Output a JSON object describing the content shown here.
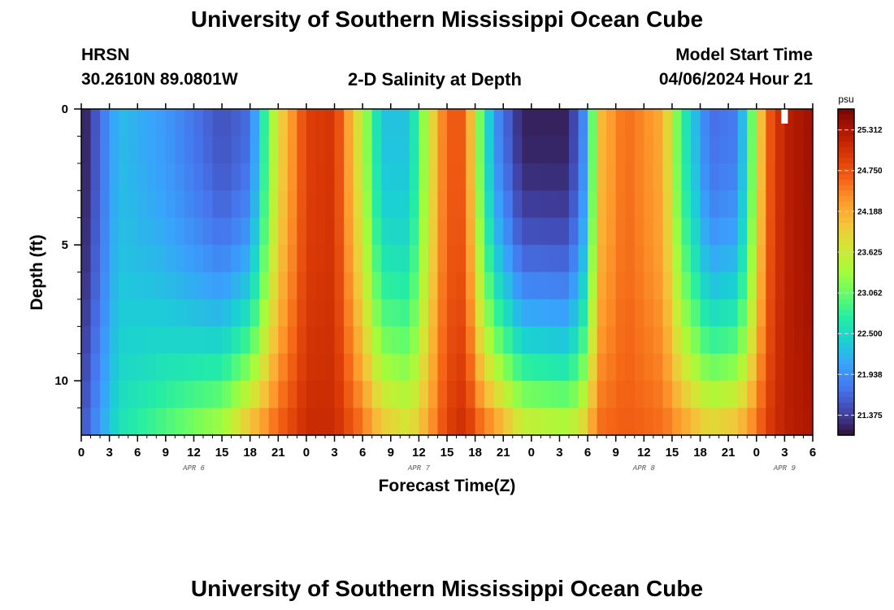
{
  "header": {
    "title": "University of Southern Mississippi Ocean Cube",
    "station": "HRSN",
    "coords": "30.2610N  89.0801W",
    "subtitle": "2-D Salinity at Depth",
    "model_start_label": "Model Start Time",
    "model_start_value": "04/06/2024 Hour 21",
    "footer_title": "University of Southern Mississippi Ocean Cube"
  },
  "colors": {
    "colormap": [
      "#30123b",
      "#4145ab",
      "#4675ed",
      "#39a2fc",
      "#1bcfd4",
      "#24eca6",
      "#61fc6c",
      "#a4fc3b",
      "#d1e834",
      "#f3c63a",
      "#fe9b2d",
      "#f36315",
      "#d93806",
      "#b11901",
      "#7a0402"
    ],
    "marker": "#ffffff"
  },
  "chart_data": {
    "type": "heatmap",
    "title": "2-D Salinity at Depth",
    "xlabel": "Forecast Time(Z)",
    "ylabel": "Depth (ft)",
    "x_unit": "hours since APR 6 00Z",
    "x_range": [
      0,
      78
    ],
    "x_ticks": [
      0,
      3,
      6,
      9,
      12,
      15,
      18,
      21,
      24,
      27,
      30,
      33,
      36,
      39,
      42,
      45,
      48,
      51,
      54,
      57,
      60,
      63,
      66,
      69,
      72,
      75,
      78
    ],
    "x_tick_labels": [
      "0",
      "3",
      "6",
      "9",
      "12",
      "15",
      "18",
      "21",
      "0",
      "3",
      "6",
      "9",
      "12",
      "15",
      "18",
      "21",
      "0",
      "3",
      "6",
      "9",
      "12",
      "15",
      "18",
      "21",
      "0",
      "3",
      "6"
    ],
    "day_labels": [
      {
        "hour": 12,
        "label": "APR 6"
      },
      {
        "hour": 36,
        "label": "APR 7"
      },
      {
        "hour": 60,
        "label": "APR 8"
      },
      {
        "hour": 75,
        "label": "APR 9"
      }
    ],
    "y_range": [
      0,
      12
    ],
    "y_ticks": [
      0,
      5,
      10
    ],
    "y_tick_labels": [
      "0",
      "5",
      "10"
    ],
    "colorbar": {
      "unit": "psu",
      "range": [
        21.1,
        25.6
      ],
      "ticks": [
        21.375,
        21.938,
        22.5,
        23.062,
        23.625,
        24.188,
        24.75,
        25.312
      ],
      "tick_labels": [
        "21.375",
        "21.938",
        "22.500",
        "23.062",
        "23.625",
        "24.188",
        "24.750",
        "25.312"
      ]
    },
    "model_start_hour": 75,
    "field": {
      "x_step_hours": 1,
      "depth_levels_ft": [
        0,
        1,
        2,
        3,
        4,
        5,
        6,
        7,
        8,
        9,
        10,
        11
      ],
      "keyframes": [
        {
          "hour": 0,
          "surface": 21.1,
          "bottom": 21.5
        },
        {
          "hour": 4,
          "surface": 22.25,
          "bottom": 22.6
        },
        {
          "hour": 9,
          "surface": 22.0,
          "bottom": 23.0
        },
        {
          "hour": 15,
          "surface": 21.5,
          "bottom": 23.5
        },
        {
          "hour": 18,
          "surface": 21.7,
          "bottom": 24.2
        },
        {
          "hour": 21,
          "surface": 23.8,
          "bottom": 24.7
        },
        {
          "hour": 24,
          "surface": 24.9,
          "bottom": 25.1
        },
        {
          "hour": 27,
          "surface": 25.0,
          "bottom": 25.1
        },
        {
          "hour": 30,
          "surface": 23.5,
          "bottom": 24.6
        },
        {
          "hour": 32,
          "surface": 22.3,
          "bottom": 24.1
        },
        {
          "hour": 35,
          "surface": 22.3,
          "bottom": 23.8
        },
        {
          "hour": 37,
          "surface": 23.6,
          "bottom": 24.3
        },
        {
          "hour": 39,
          "surface": 24.7,
          "bottom": 24.9
        },
        {
          "hour": 41,
          "surface": 24.7,
          "bottom": 25.1
        },
        {
          "hour": 42,
          "surface": 23.5,
          "bottom": 24.8
        },
        {
          "hour": 44,
          "surface": 22.0,
          "bottom": 24.5
        },
        {
          "hour": 47,
          "surface": 21.2,
          "bottom": 23.8
        },
        {
          "hour": 52,
          "surface": 21.2,
          "bottom": 23.6
        },
        {
          "hour": 54,
          "surface": 22.1,
          "bottom": 24.1
        },
        {
          "hour": 55,
          "surface": 24.0,
          "bottom": 24.6
        },
        {
          "hour": 58,
          "surface": 24.6,
          "bottom": 24.7
        },
        {
          "hour": 62,
          "surface": 24.2,
          "bottom": 24.6
        },
        {
          "hour": 64,
          "surface": 22.8,
          "bottom": 24.4
        },
        {
          "hour": 67,
          "surface": 21.7,
          "bottom": 24.0
        },
        {
          "hour": 70,
          "surface": 21.8,
          "bottom": 24.2
        },
        {
          "hour": 72,
          "surface": 23.5,
          "bottom": 24.6
        },
        {
          "hour": 73,
          "surface": 24.6,
          "bottom": 24.9
        },
        {
          "hour": 75,
          "surface": 25.2,
          "bottom": 25.2
        },
        {
          "hour": 78,
          "surface": 25.4,
          "bottom": 25.3
        }
      ]
    }
  }
}
